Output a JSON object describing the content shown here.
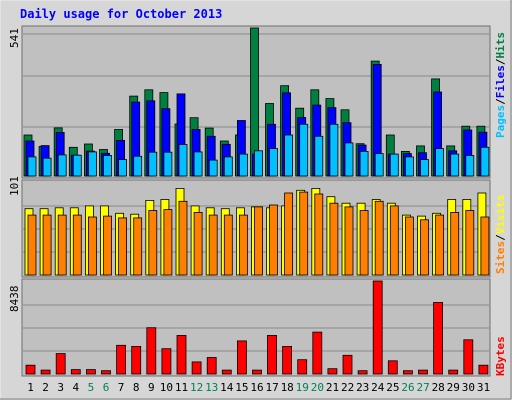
{
  "chart_data": [
    {
      "type": "bar",
      "title": "Daily usage for October 2013",
      "ylabel_parts": [
        "Pages",
        "/",
        "Files",
        "/",
        "Hits"
      ],
      "ymax_label": "541",
      "ylim": [
        0,
        541
      ],
      "categories": [
        "1",
        "2",
        "3",
        "4",
        "5",
        "6",
        "7",
        "8",
        "9",
        "10",
        "11",
        "12",
        "13",
        "14",
        "15",
        "16",
        "17",
        "18",
        "19",
        "20",
        "21",
        "22",
        "23",
        "24",
        "25",
        "26",
        "27",
        "28",
        "29",
        "30",
        "31"
      ],
      "weekend_days": [
        "5",
        "6",
        "12",
        "13",
        "19",
        "20",
        "26",
        "27"
      ],
      "series": [
        {
          "name": "Hits",
          "values": [
            150,
            108,
            176,
            105,
            117,
            97,
            170,
            292,
            315,
            305,
            190,
            213,
            175,
            128,
            150,
            541,
            265,
            330,
            248,
            315,
            283,
            242,
            118,
            420,
            150,
            90,
            110,
            355,
            110,
            182,
            182
          ]
        },
        {
          "name": "Files",
          "values": [
            128,
            111,
            159,
            76,
            91,
            83,
            130,
            270,
            275,
            246,
            300,
            170,
            145,
            116,
            203,
            80,
            189,
            304,
            214,
            259,
            250,
            195,
            113,
            408,
            80,
            82,
            85,
            307,
            92,
            168,
            160
          ]
        },
        {
          "name": "Pages",
          "values": [
            70,
            65,
            77,
            76,
            88,
            75,
            60,
            72,
            87,
            87,
            115,
            88,
            58,
            70,
            80,
            92,
            100,
            150,
            189,
            145,
            189,
            121,
            90,
            82,
            80,
            70,
            60,
            100,
            80,
            75,
            105
          ]
        }
      ]
    },
    {
      "type": "bar",
      "ylabel_parts": [
        "Sites",
        "/",
        "Visits"
      ],
      "ymax_label": "101",
      "ylim": [
        0,
        101
      ],
      "categories": [
        "1",
        "2",
        "3",
        "4",
        "5",
        "6",
        "7",
        "8",
        "9",
        "10",
        "11",
        "12",
        "13",
        "14",
        "15",
        "16",
        "17",
        "18",
        "19",
        "20",
        "21",
        "22",
        "23",
        "24",
        "25",
        "26",
        "27",
        "28",
        "29",
        "30",
        "31"
      ],
      "series": [
        {
          "name": "Visits",
          "values": [
            72,
            72,
            73,
            73,
            75,
            75,
            67,
            66,
            81,
            82,
            94,
            75,
            73,
            72,
            73,
            74,
            73,
            75,
            92,
            94,
            85,
            78,
            78,
            82,
            78,
            65,
            64,
            67,
            82,
            82,
            89
          ]
        },
        {
          "name": "Sites",
          "values": [
            65,
            65,
            65,
            65,
            63,
            64,
            62,
            62,
            70,
            71,
            80,
            68,
            65,
            65,
            65,
            74,
            76,
            89,
            90,
            88,
            78,
            74,
            70,
            80,
            75,
            63,
            60,
            65,
            68,
            70,
            63
          ]
        }
      ]
    },
    {
      "type": "bar",
      "ylabel_parts": [
        "KBytes"
      ],
      "ymax_label": "8438",
      "ylim": [
        0,
        8438
      ],
      "categories": [
        "1",
        "2",
        "3",
        "4",
        "5",
        "6",
        "7",
        "8",
        "9",
        "10",
        "11",
        "12",
        "13",
        "14",
        "15",
        "16",
        "17",
        "18",
        "19",
        "20",
        "21",
        "22",
        "23",
        "24",
        "25",
        "26",
        "27",
        "28",
        "29",
        "30",
        "31"
      ],
      "series": [
        {
          "name": "KBytes",
          "values": [
            800,
            350,
            1850,
            400,
            400,
            300,
            2600,
            2500,
            4200,
            2300,
            3500,
            1100,
            1500,
            350,
            3000,
            350,
            3500,
            2500,
            1300,
            3800,
            480,
            1700,
            300,
            8438,
            1200,
            300,
            350,
            6500,
            350,
            3100,
            800
          ]
        }
      ]
    }
  ],
  "colors": {
    "hits": "#008040",
    "files": "#0000ff",
    "pages": "#00c0ff",
    "visits": "#ffff00",
    "sites": "#ff8000",
    "kbytes": "#ff0000",
    "title": "#0000ff",
    "weekend": "#00805c",
    "weekday": "#000000",
    "plot_bg": "#c0c0c0",
    "frame_bg": "#d6d6d6"
  }
}
